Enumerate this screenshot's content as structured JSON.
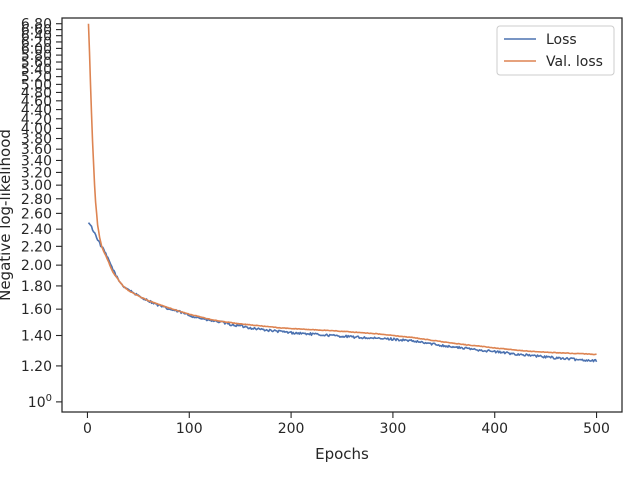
{
  "chart_data": {
    "type": "line",
    "xlabel": "Epochs",
    "ylabel": "Negative log-likelihood",
    "xlim": [
      -25,
      525
    ],
    "ylim": [
      0.95,
      7.0
    ],
    "yscale": "log",
    "grid": false,
    "legend_position": "top-right",
    "x_ticks": [
      0,
      100,
      200,
      300,
      400,
      500
    ],
    "y_ticks": [
      {
        "value": 1.0,
        "label": "10",
        "sup": "0"
      },
      {
        "value": 1.2,
        "label": "1.20"
      },
      {
        "value": 1.4,
        "label": "1.40"
      },
      {
        "value": 1.6,
        "label": "1.60"
      },
      {
        "value": 1.8,
        "label": "1.80"
      },
      {
        "value": 2.0,
        "label": "2.00"
      },
      {
        "value": 2.2,
        "label": "2.20"
      },
      {
        "value": 2.4,
        "label": "2.40"
      },
      {
        "value": 2.6,
        "label": "2.60"
      },
      {
        "value": 2.8,
        "label": "2.80"
      },
      {
        "value": 3.0,
        "label": "3.00"
      },
      {
        "value": 3.2,
        "label": "3.20"
      },
      {
        "value": 3.4,
        "label": "3.40"
      },
      {
        "value": 3.6,
        "label": "3.60"
      },
      {
        "value": 3.8,
        "label": "3.80"
      },
      {
        "value": 4.0,
        "label": "4.00"
      },
      {
        "value": 4.2,
        "label": "4.20"
      },
      {
        "value": 4.4,
        "label": "4.40"
      },
      {
        "value": 4.6,
        "label": "4.60"
      },
      {
        "value": 4.8,
        "label": "4.80"
      },
      {
        "value": 5.0,
        "label": "5.00"
      },
      {
        "value": 5.2,
        "label": "5.20"
      },
      {
        "value": 5.4,
        "label": "5.40"
      },
      {
        "value": 5.6,
        "label": "5.60"
      },
      {
        "value": 5.8,
        "label": "5.80"
      },
      {
        "value": 6.0,
        "label": "6.00"
      },
      {
        "value": 6.2,
        "label": "6.20"
      },
      {
        "value": 6.4,
        "label": "6.40"
      },
      {
        "value": 6.6,
        "label": "6.60"
      },
      {
        "value": 6.8,
        "label": "6.80"
      }
    ],
    "series": [
      {
        "name": "Loss",
        "color": "#4c72b0",
        "noise": 0.006,
        "x": [
          1,
          3,
          5,
          8,
          10,
          13,
          16,
          20,
          25,
          30,
          35,
          40,
          50,
          60,
          70,
          80,
          90,
          100,
          110,
          120,
          130,
          140,
          150,
          160,
          170,
          180,
          190,
          200,
          220,
          240,
          260,
          280,
          300,
          320,
          340,
          360,
          380,
          400,
          420,
          440,
          460,
          480,
          500
        ],
        "y": [
          2.48,
          2.45,
          2.4,
          2.33,
          2.28,
          2.21,
          2.16,
          2.07,
          1.96,
          1.86,
          1.8,
          1.77,
          1.71,
          1.67,
          1.63,
          1.6,
          1.58,
          1.55,
          1.53,
          1.51,
          1.5,
          1.48,
          1.47,
          1.455,
          1.445,
          1.435,
          1.428,
          1.42,
          1.41,
          1.4,
          1.39,
          1.38,
          1.375,
          1.36,
          1.34,
          1.32,
          1.305,
          1.29,
          1.275,
          1.262,
          1.25,
          1.24,
          1.232
        ]
      },
      {
        "name": "Val. loss",
        "color": "#dd8452",
        "noise": 0.0015,
        "x": [
          1,
          2,
          3,
          4,
          5,
          6,
          7,
          8,
          10,
          12,
          14,
          16,
          18,
          20,
          22,
          25,
          30,
          35,
          40,
          50,
          60,
          70,
          80,
          90,
          100,
          110,
          120,
          130,
          140,
          150,
          160,
          170,
          180,
          190,
          200,
          220,
          240,
          260,
          280,
          300,
          320,
          340,
          360,
          380,
          400,
          420,
          440,
          460,
          480,
          500
        ],
        "y": [
          6.8,
          5.9,
          5.0,
          4.3,
          3.75,
          3.35,
          3.0,
          2.75,
          2.45,
          2.3,
          2.2,
          2.14,
          2.1,
          2.05,
          2.0,
          1.93,
          1.86,
          1.8,
          1.76,
          1.71,
          1.67,
          1.64,
          1.61,
          1.585,
          1.56,
          1.54,
          1.52,
          1.505,
          1.495,
          1.485,
          1.477,
          1.47,
          1.462,
          1.455,
          1.45,
          1.442,
          1.435,
          1.425,
          1.415,
          1.4,
          1.385,
          1.365,
          1.345,
          1.33,
          1.315,
          1.3,
          1.29,
          1.283,
          1.278,
          1.272
        ]
      }
    ]
  }
}
